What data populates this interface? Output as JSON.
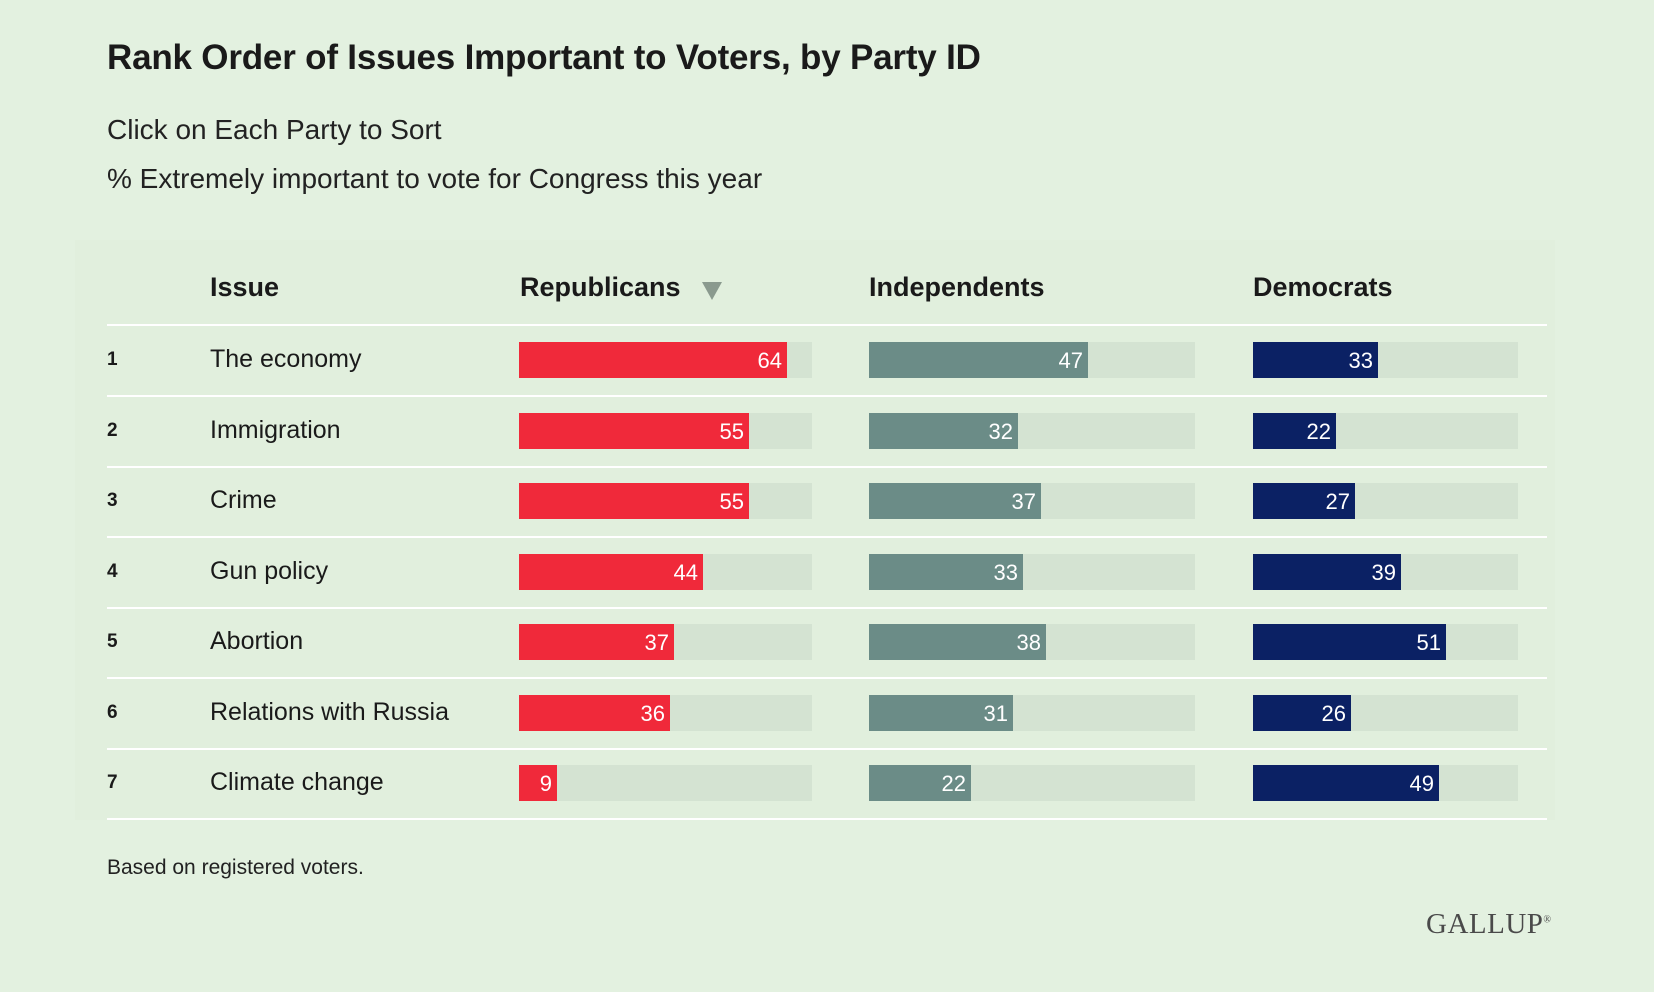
{
  "chart_data": {
    "type": "bar",
    "title": "Rank Order of Issues Important to Voters, by Party ID",
    "subtitle": "Click on Each Party to Sort",
    "note": "% Extremely important to vote for Congress this year",
    "columns": {
      "issue": "Issue",
      "republicans": "Republicans",
      "independents": "Independents",
      "democrats": "Democrats"
    },
    "categories": [
      "The economy",
      "Immigration",
      "Crime",
      "Gun policy",
      "Abortion",
      "Relations with Russia",
      "Climate change"
    ],
    "ranks": [
      "1",
      "2",
      "3",
      "4",
      "5",
      "6",
      "7"
    ],
    "series": [
      {
        "name": "Republicans",
        "color": "#f0293a",
        "values": [
          64,
          55,
          55,
          44,
          37,
          36,
          9
        ]
      },
      {
        "name": "Independents",
        "color": "#6b8c87",
        "values": [
          47,
          32,
          37,
          33,
          38,
          31,
          22
        ]
      },
      {
        "name": "Democrats",
        "color": "#0b2164",
        "values": [
          33,
          22,
          27,
          39,
          51,
          26,
          49
        ]
      }
    ],
    "sort": {
      "column": "Republicans",
      "direction": "descending"
    },
    "footnote": "Based on registered voters.",
    "source_logo": "GALLUP"
  }
}
